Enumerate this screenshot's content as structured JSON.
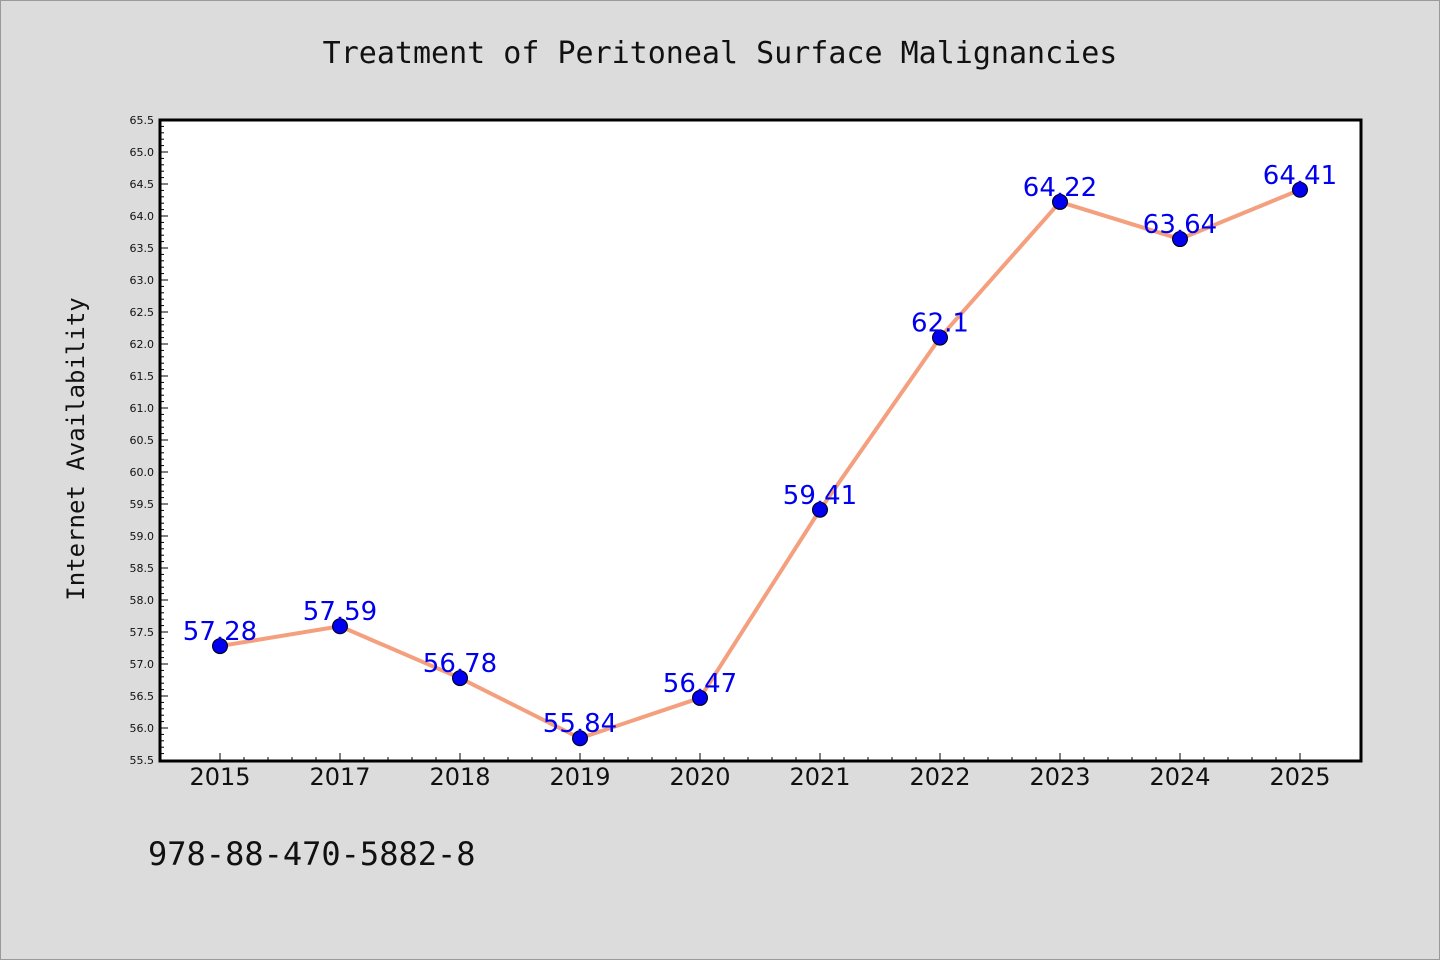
{
  "chart_data": {
    "type": "line",
    "title": "Treatment of Peritoneal Surface Malignancies",
    "xlabel": "",
    "ylabel": "Internet Availability",
    "categories": [
      "2015",
      "2017",
      "2018",
      "2019",
      "2020",
      "2021",
      "2022",
      "2023",
      "2024",
      "2025"
    ],
    "series": [
      {
        "values": [
          57.28,
          57.59,
          56.78,
          55.84,
          56.47,
          59.41,
          62.1,
          64.22,
          63.64,
          64.41
        ],
        "labels": [
          "57.28",
          "57.59",
          "56.78",
          "55.84",
          "56.47",
          "59.41",
          "62.1",
          "64.22",
          "63.64",
          "64.41"
        ]
      }
    ],
    "ylim": [
      55.5,
      65.5
    ],
    "ytick_step": 0.5,
    "grid": false,
    "legend": "none",
    "colors": {
      "line": "#f4a07f",
      "marker": "#0000ee",
      "data_label": "#0000ee",
      "background": "#dcdcdc",
      "plot_area": "#ffffff"
    }
  },
  "footer": {
    "isbn": "978-88-470-5882-8"
  }
}
